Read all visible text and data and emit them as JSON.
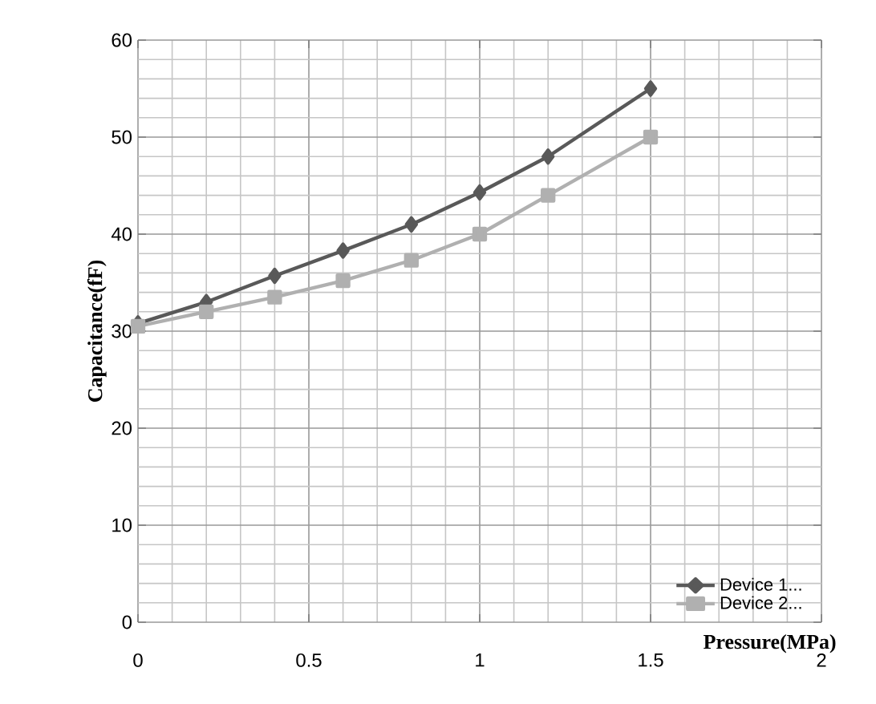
{
  "chart_data": {
    "type": "line",
    "xlabel": "Pressure(MPa)",
    "ylabel": "Capacitance(fF)",
    "x": [
      0,
      0.2,
      0.4,
      0.6,
      0.8,
      1.0,
      1.2,
      1.5
    ],
    "series": [
      {
        "name": "Device 1...",
        "color": "#595959",
        "marker": "diamond",
        "values": [
          30.8,
          33,
          35.7,
          38.3,
          41,
          44.3,
          48,
          55
        ]
      },
      {
        "name": "Device 2...",
        "color": "#b0b0b0",
        "marker": "square",
        "values": [
          30.5,
          32,
          33.5,
          35.2,
          37.3,
          40,
          44,
          50
        ]
      }
    ],
    "xlim": [
      0,
      2
    ],
    "xticks": [
      0,
      0.5,
      1,
      1.5,
      2
    ],
    "ylim": [
      0,
      60
    ],
    "yticks": [
      0,
      10,
      20,
      30,
      40,
      50,
      60
    ],
    "grid": true,
    "legend": "bottom right",
    "line_style": "solid"
  }
}
